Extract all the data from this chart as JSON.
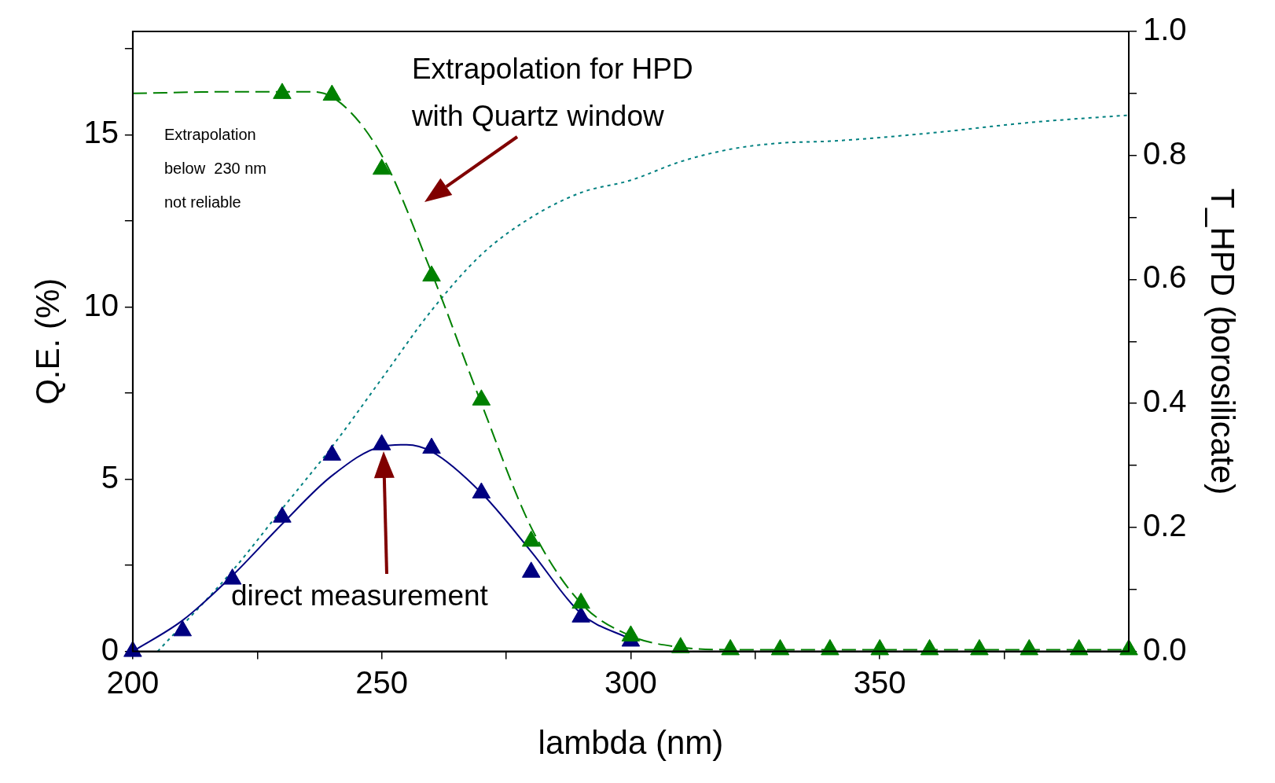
{
  "chart_data": {
    "type": "line",
    "xlabel": "lambda (nm)",
    "ylabel": "Q.E. (%)",
    "y2label": "T_HPD (borosilicate)",
    "xlim": [
      200,
      400
    ],
    "xticks": [
      200,
      {
        "value": 225,
        "label": null
      },
      250,
      {
        "value": 275,
        "label": null
      },
      300,
      {
        "value": 325,
        "label": null
      },
      350,
      {
        "value": 375,
        "label": null
      }
    ],
    "ylim": [
      0,
      18
    ],
    "yticks": [
      0,
      {
        "value": 2.5,
        "label": null
      },
      5,
      {
        "value": 7.5,
        "label": null
      },
      10,
      {
        "value": 12.5,
        "label": null
      },
      15,
      {
        "value": 17.5,
        "label": null
      }
    ],
    "y2lim": [
      0,
      1
    ],
    "y2ticks": [
      {
        "value": 0,
        "label": "0.0"
      },
      {
        "value": 0.1,
        "label": null
      },
      0.2,
      {
        "value": 0.3,
        "label": null
      },
      0.4,
      {
        "value": 0.5,
        "label": null
      },
      0.6,
      {
        "value": 0.7,
        "label": null
      },
      0.8,
      {
        "value": 0.9,
        "label": null
      },
      {
        "value": 1,
        "label": "1.0"
      }
    ],
    "grid": false,
    "legend": false,
    "series": [
      {
        "type": "scatter",
        "color": "#008000",
        "marker": "triangle",
        "x": [
          230,
          240,
          250,
          260,
          270,
          280,
          290,
          300,
          310,
          320,
          330,
          340,
          350,
          360,
          370,
          380,
          390,
          400
        ],
        "values": [
          16.2,
          16.15,
          14.0,
          10.9,
          7.3,
          3.2,
          1.4,
          0.45,
          0.11,
          0.05,
          0.05,
          0.05,
          0.05,
          0.05,
          0.05,
          0.05,
          0.05,
          0.05
        ]
      },
      {
        "color": "#008000",
        "line_style": "dashed",
        "marker": "none",
        "x": [
          200,
          220,
          235,
          240,
          250,
          260,
          270,
          280,
          290,
          300,
          310,
          320,
          400
        ],
        "values": [
          16.2,
          16.25,
          16.25,
          16.1,
          14.4,
          11.0,
          7.2,
          3.6,
          1.4,
          0.45,
          0.12,
          0.05,
          0.05
        ]
      },
      {
        "type": "scatter",
        "color": "#000080",
        "marker": "triangle",
        "x": [
          200,
          210,
          220,
          230,
          240,
          250,
          260,
          270,
          280,
          290,
          300
        ],
        "values": [
          0,
          0.6,
          2.1,
          3.9,
          5.7,
          6.0,
          5.9,
          4.6,
          2.3,
          1.0,
          0.3
        ]
      },
      {
        "color": "#000080",
        "line_style": "solid",
        "marker": "none",
        "x": [
          200,
          210,
          220,
          230,
          240,
          250,
          255,
          260,
          270,
          280,
          290,
          300
        ],
        "values": [
          0,
          0.9,
          2.2,
          3.7,
          5.1,
          5.95,
          6.0,
          5.8,
          4.6,
          2.9,
          1.1,
          0.35
        ]
      },
      {
        "color": "#008080",
        "line_style": "dotted",
        "marker": "none",
        "axis": "y2",
        "x": [
          205,
          220,
          230,
          240,
          250,
          260,
          270,
          280,
          290,
          300,
          310,
          320,
          330,
          340,
          360,
          380,
          400
        ],
        "values": [
          0,
          0.13,
          0.23,
          0.33,
          0.44,
          0.55,
          0.64,
          0.7,
          0.74,
          0.76,
          0.79,
          0.81,
          0.82,
          0.823,
          0.836,
          0.853,
          0.865
        ]
      }
    ],
    "annotations": [
      "Extrapolation\nbelow  230 nm\nnot reliable",
      "Extrapolation for HPD\nwith Quartz window",
      "direct measurement"
    ]
  }
}
